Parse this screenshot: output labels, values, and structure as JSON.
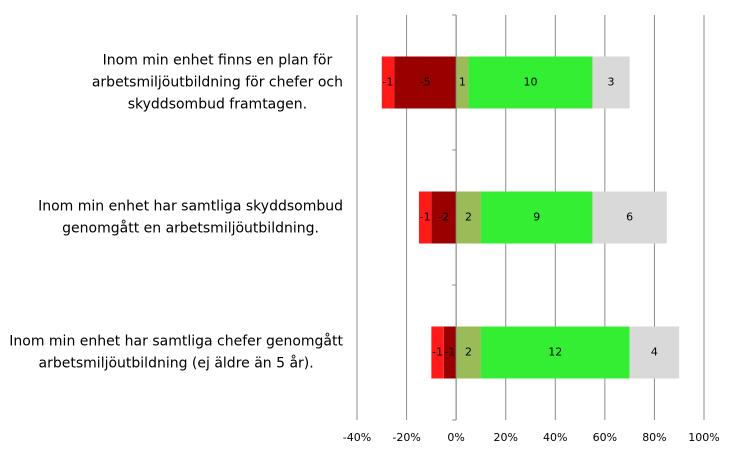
{
  "chart_data": {
    "type": "diverging-stacked-bar",
    "categories": [
      [
        "Inom min enhet finns en plan för",
        "arbetsmiljöutbildning för chefer och",
        "skyddsombud framtagen."
      ],
      [
        "Inom min enhet har samtliga skyddsombud",
        "genomgått en arbetsmiljöutbildning."
      ],
      [
        "Inom min enhet har samtliga chefer genomgått",
        "arbetsmiljöutbildning (ej äldre än 5 år)."
      ]
    ],
    "series": [
      {
        "color": "#990000",
        "values": [
          -25,
          -10,
          -5
        ],
        "counts": [
          -5,
          -2,
          -1
        ]
      },
      {
        "color": "#ff1a1a",
        "values": [
          -5,
          -5,
          -5
        ],
        "counts": [
          -1,
          -1,
          -1
        ]
      },
      {
        "color": "#9bbb59",
        "values": [
          5,
          10,
          10
        ],
        "counts": [
          1,
          2,
          2
        ]
      },
      {
        "color": "#33ee33",
        "values": [
          50,
          45,
          60
        ],
        "counts": [
          10,
          9,
          12
        ]
      },
      {
        "color": "#d9d9d9",
        "values": [
          15,
          30,
          20
        ],
        "counts": [
          3,
          6,
          4
        ]
      }
    ],
    "xlim": [
      -40,
      100
    ],
    "xticks": [
      {
        "value": -40,
        "label": "-40%"
      },
      {
        "value": -20,
        "label": "-20%"
      },
      {
        "value": 0,
        "label": "0%"
      },
      {
        "value": 20,
        "label": "20%"
      },
      {
        "value": 40,
        "label": "40%"
      },
      {
        "value": 60,
        "label": "60%"
      },
      {
        "value": 80,
        "label": "80%"
      },
      {
        "value": 100,
        "label": "100%"
      }
    ],
    "grid": true
  }
}
